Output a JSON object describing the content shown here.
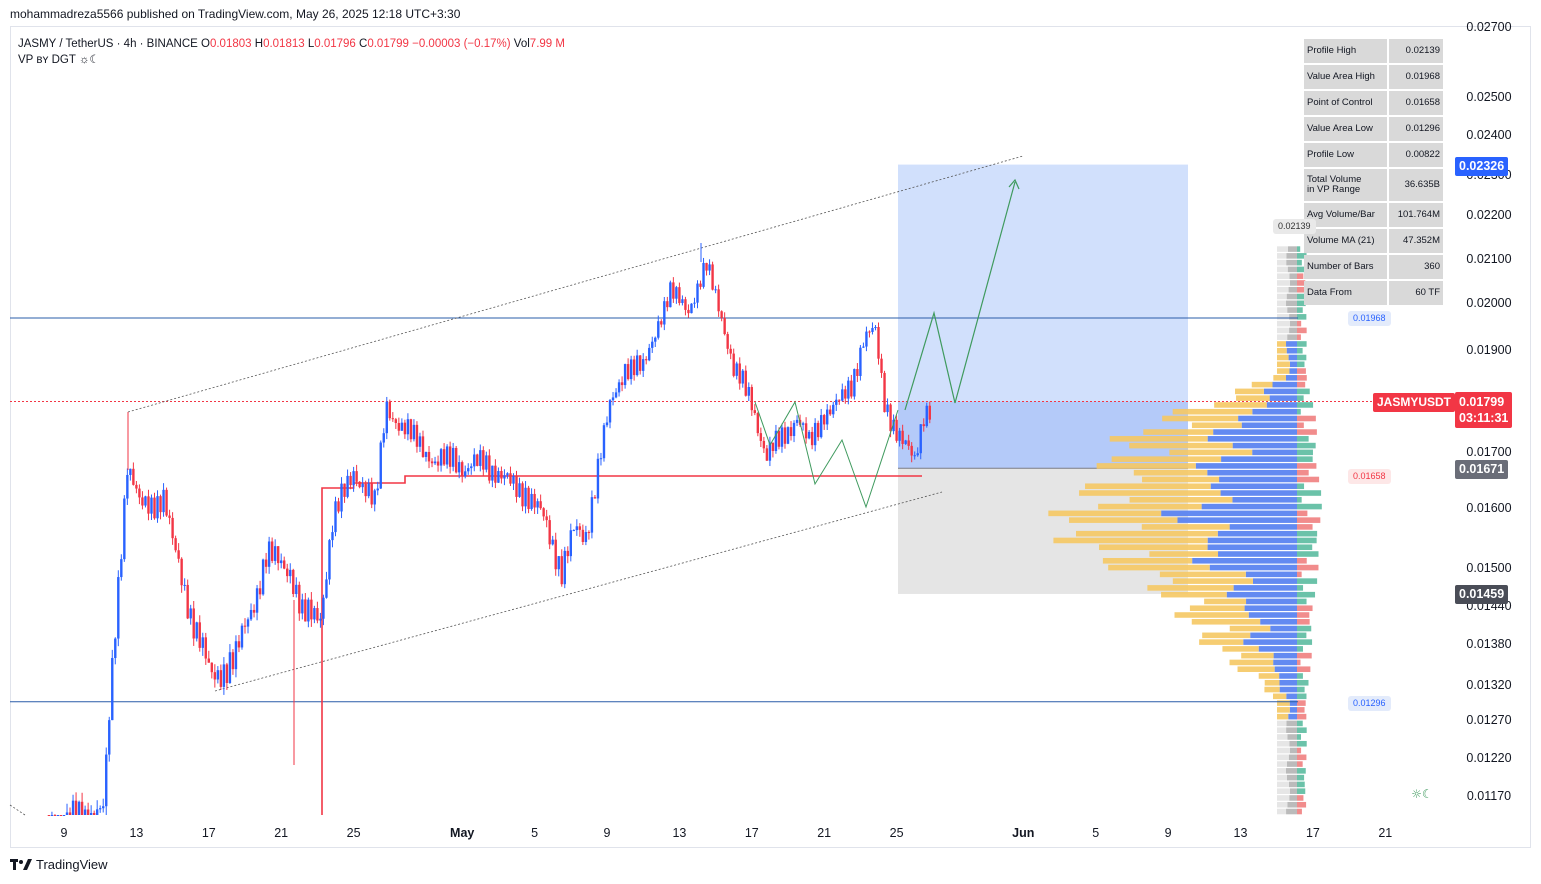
{
  "header": {
    "publish_line": "mohammadreza5566 published on TradingView.com, May 26, 2025 12:18 UTC+3:30"
  },
  "legend": {
    "symbol": "JASMY / TetherUS · 4h · BINANCE",
    "o_label": "O",
    "o_value": "0.01803",
    "h_label": "H",
    "h_value": "0.01813",
    "l_label": "L",
    "l_value": "0.01796",
    "c_label": "C",
    "c_value": "0.01799",
    "change": "−0.00003 (−0.17%)",
    "vol_label": "Vol",
    "vol_value": "7.99 M",
    "indicator": "VP ʙʏ DGT ☼☾"
  },
  "stats": [
    {
      "label": "Profile High",
      "value": "0.02139"
    },
    {
      "label": "Value Area High",
      "value": "0.01968"
    },
    {
      "label": "Point of Control",
      "value": "0.01658"
    },
    {
      "label": "Value Area Low",
      "value": "0.01296"
    },
    {
      "label": "Profile Low",
      "value": "0.00822"
    },
    {
      "label": "Total Volume",
      "label2": "in VP Range",
      "value": "36.635B"
    },
    {
      "label": "Avg Volume/Bar",
      "value": "101.764M"
    },
    {
      "label": "Volume MA (21)",
      "value": "47.352M"
    },
    {
      "label": "Number of Bars",
      "value": "360"
    },
    {
      "label": "Data From",
      "value": "60 TF"
    }
  ],
  "tags": {
    "target": "0.02326",
    "symbol_name": "JASMYUSDT",
    "last_price": "0.01799",
    "countdown": "03:11:31",
    "entry": "0.01671",
    "stop": "0.01459",
    "profile_high": "0.02139",
    "vah": "0.01968",
    "poc": "0.01658",
    "val": "0.01296"
  },
  "footer": {
    "brand": "TradingView"
  },
  "chart_data": {
    "type": "candlestick",
    "interval": "4h",
    "y_axis_ticks": [
      "0.02700",
      "0.02500",
      "0.02400",
      "0.02300",
      "0.02200",
      "0.02100",
      "0.02000",
      "0.01900",
      "0.01700",
      "0.01600",
      "0.01500",
      "0.01440",
      "0.01380",
      "0.01320",
      "0.01270",
      "0.01220",
      "0.01170"
    ],
    "x_axis_ticks": [
      "9",
      "13",
      "17",
      "21",
      "25",
      "May",
      "5",
      "9",
      "13",
      "17",
      "21",
      "25",
      "Jun",
      "5",
      "9",
      "13",
      "17",
      "21"
    ],
    "key_levels": {
      "value_area_high": 0.01968,
      "point_of_control": 0.01658,
      "value_area_low": 0.01296,
      "last_price": 0.01799
    },
    "position": {
      "target": 0.02326,
      "entry": 0.01671,
      "stop": 0.01459
    },
    "colors": {
      "up": "#2962ff",
      "down": "#f23645",
      "profit_zone": "#c6d8fb",
      "loss_zone": "#e0e0e0",
      "poc_line": "#f23645",
      "value_area_line": "#2a5ca8",
      "projection": "#3f9a5e",
      "vp_buy": "#5b84f0",
      "vp_sell": "#f5c863",
      "vp_delta_up": "#5bbba0",
      "vp_delta_down": "#f08080"
    }
  }
}
